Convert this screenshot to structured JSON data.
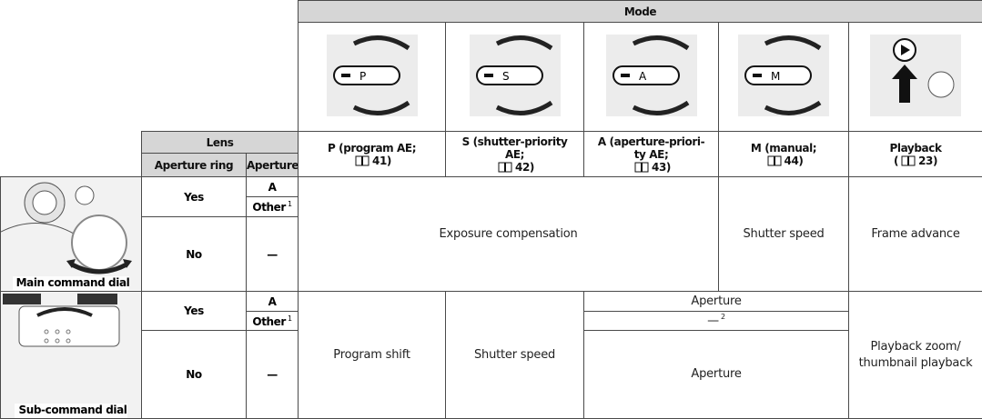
{
  "header": {
    "mode": "Mode",
    "lens": "Lens",
    "aperture_ring": "Aperture ring",
    "aperture": "Aperture"
  },
  "modes": [
    {
      "dial_letter": "P",
      "label_lines": [
        "P (program AE;"
      ],
      "page": "41)"
    },
    {
      "dial_letter": "S",
      "label_lines": [
        "S (shutter-priority",
        "AE;"
      ],
      "page": "42)"
    },
    {
      "dial_letter": "A",
      "label_lines": [
        "A (aperture-priori-",
        "ty AE;"
      ],
      "page": "43)"
    },
    {
      "dial_letter": "M",
      "label_lines": [
        "M (manual;"
      ],
      "page": "44)"
    },
    {
      "label_lines": [
        "Playback"
      ],
      "page_prefix": "(",
      "page": "23)"
    }
  ],
  "dials": [
    {
      "name": "Main command dial",
      "lens_rows": [
        {
          "ring": "Yes",
          "apertures": [
            {
              "text": "A"
            },
            {
              "text": "Other",
              "note": "1"
            }
          ]
        },
        {
          "ring": "No",
          "apertures": [
            {
              "text": "—"
            }
          ]
        }
      ],
      "functions": {
        "p_s_a": "Exposure compensation",
        "m": "Shutter speed",
        "playback": "Frame advance"
      }
    },
    {
      "name": "Sub-command dial",
      "lens_rows": [
        {
          "ring": "Yes",
          "apertures": [
            {
              "text": "A"
            },
            {
              "text": "Other",
              "note": "1"
            }
          ]
        },
        {
          "ring": "No",
          "apertures": [
            {
              "text": "—"
            }
          ]
        }
      ],
      "functions": {
        "p": "Program shift",
        "s": "Shutter speed",
        "a_m": [
          {
            "text": "Aperture"
          },
          {
            "text": "—",
            "note": "2"
          },
          {
            "text": "Aperture"
          }
        ],
        "playback": "Playback zoom/ thumbnail playback"
      }
    }
  ]
}
